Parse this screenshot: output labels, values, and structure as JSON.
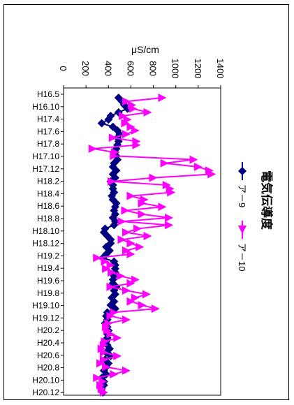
{
  "chart_data": {
    "type": "line",
    "orientation": "vertical-categories",
    "title": "電気伝導度",
    "xlabel": "μS/cm",
    "ylabel": "",
    "xlim": [
      0,
      1400
    ],
    "x_ticks": [
      0,
      200,
      400,
      600,
      800,
      1000,
      1200,
      1400
    ],
    "category_ticks": [
      "H16.5",
      "H16.10",
      "H17.4",
      "H17.6",
      "H17.8",
      "H17.10",
      "H17.12",
      "H18.2",
      "H18.4",
      "H18.6",
      "H18.8",
      "H18.10",
      "H18.12",
      "H19.2",
      "H19.4",
      "H19.6",
      "H19.8",
      "H19.10",
      "H19.12",
      "H20.2",
      "H20.4",
      "H20.6",
      "H20.8",
      "H20.10",
      "H20.12"
    ],
    "legend_position": "right",
    "grid": false,
    "series": [
      {
        "name": "ア－9",
        "color": "#000080",
        "marker": "diamond",
        "values": [
          490,
          520,
          540,
          570,
          490,
          420,
          400,
          340,
          440,
          480,
          500,
          480,
          490,
          480,
          470,
          460,
          470,
          480,
          450,
          440,
          470,
          440,
          460,
          420,
          440,
          440,
          450,
          430,
          440,
          470,
          460,
          450,
          460,
          440,
          460,
          450,
          370,
          360,
          390,
          420,
          420,
          380,
          410,
          380,
          350,
          450,
          460,
          460,
          460,
          450,
          440,
          440,
          470,
          450,
          460,
          430,
          450,
          420,
          460,
          390,
          380,
          390,
          370,
          390,
          400,
          390,
          390,
          380,
          390,
          410,
          380,
          420,
          370,
          400,
          380,
          360,
          380,
          340,
          360,
          360,
          340,
          350
        ]
      },
      {
        "name": "ア－10",
        "color": "#ff00ff",
        "marker": "triangle",
        "values": [
          880,
          560,
          610,
          620,
          750,
          530,
          570,
          550,
          600,
          640,
          560,
          440,
          650,
          650,
          260,
          460,
          450,
          1160,
          900,
          1200,
          1300,
          1320,
          800,
          430,
          920,
          950,
          960,
          600,
          720,
          700,
          880,
          550,
          700,
          940,
          520,
          940,
          660,
          560,
          750,
          520,
          600,
          680,
          560,
          600,
          300,
          370,
          420,
          380,
          430,
          510,
          640,
          600,
          420,
          560,
          740,
          640,
          600,
          700,
          820,
          450,
          420,
          560,
          400,
          380,
          390,
          420,
          480,
          370,
          360,
          340,
          360,
          480,
          360,
          330,
          380,
          560,
          450,
          300,
          350,
          330,
          340,
          360
        ]
      }
    ]
  }
}
